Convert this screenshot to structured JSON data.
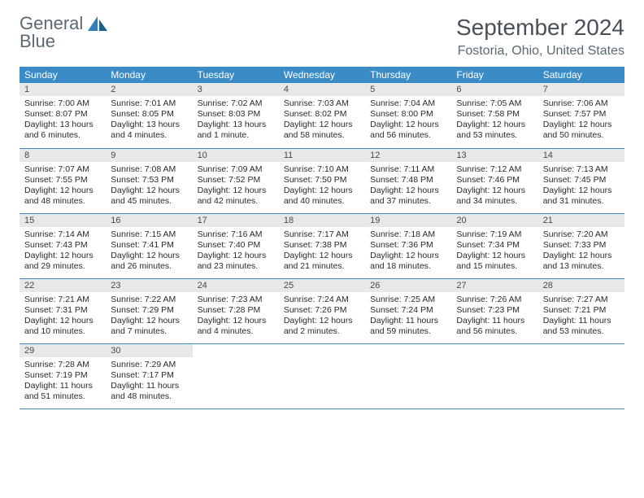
{
  "logo": {
    "line1": "General",
    "line2": "Blue"
  },
  "title": "September 2024",
  "location": "Fostoria, Ohio, United States",
  "colors": {
    "header_bg": "#3b8bc6",
    "header_text": "#ffffff",
    "daynum_bg": "#e7e8ea",
    "row_border": "#3b8bc6",
    "logo_gray": "#5a6a72",
    "logo_blue": "#2e7fbb"
  },
  "weekdays": [
    "Sunday",
    "Monday",
    "Tuesday",
    "Wednesday",
    "Thursday",
    "Friday",
    "Saturday"
  ],
  "weeks": [
    [
      {
        "n": "1",
        "sunrise": "Sunrise: 7:00 AM",
        "sunset": "Sunset: 8:07 PM",
        "daylight": "Daylight: 13 hours and 6 minutes."
      },
      {
        "n": "2",
        "sunrise": "Sunrise: 7:01 AM",
        "sunset": "Sunset: 8:05 PM",
        "daylight": "Daylight: 13 hours and 4 minutes."
      },
      {
        "n": "3",
        "sunrise": "Sunrise: 7:02 AM",
        "sunset": "Sunset: 8:03 PM",
        "daylight": "Daylight: 13 hours and 1 minute."
      },
      {
        "n": "4",
        "sunrise": "Sunrise: 7:03 AM",
        "sunset": "Sunset: 8:02 PM",
        "daylight": "Daylight: 12 hours and 58 minutes."
      },
      {
        "n": "5",
        "sunrise": "Sunrise: 7:04 AM",
        "sunset": "Sunset: 8:00 PM",
        "daylight": "Daylight: 12 hours and 56 minutes."
      },
      {
        "n": "6",
        "sunrise": "Sunrise: 7:05 AM",
        "sunset": "Sunset: 7:58 PM",
        "daylight": "Daylight: 12 hours and 53 minutes."
      },
      {
        "n": "7",
        "sunrise": "Sunrise: 7:06 AM",
        "sunset": "Sunset: 7:57 PM",
        "daylight": "Daylight: 12 hours and 50 minutes."
      }
    ],
    [
      {
        "n": "8",
        "sunrise": "Sunrise: 7:07 AM",
        "sunset": "Sunset: 7:55 PM",
        "daylight": "Daylight: 12 hours and 48 minutes."
      },
      {
        "n": "9",
        "sunrise": "Sunrise: 7:08 AM",
        "sunset": "Sunset: 7:53 PM",
        "daylight": "Daylight: 12 hours and 45 minutes."
      },
      {
        "n": "10",
        "sunrise": "Sunrise: 7:09 AM",
        "sunset": "Sunset: 7:52 PM",
        "daylight": "Daylight: 12 hours and 42 minutes."
      },
      {
        "n": "11",
        "sunrise": "Sunrise: 7:10 AM",
        "sunset": "Sunset: 7:50 PM",
        "daylight": "Daylight: 12 hours and 40 minutes."
      },
      {
        "n": "12",
        "sunrise": "Sunrise: 7:11 AM",
        "sunset": "Sunset: 7:48 PM",
        "daylight": "Daylight: 12 hours and 37 minutes."
      },
      {
        "n": "13",
        "sunrise": "Sunrise: 7:12 AM",
        "sunset": "Sunset: 7:46 PM",
        "daylight": "Daylight: 12 hours and 34 minutes."
      },
      {
        "n": "14",
        "sunrise": "Sunrise: 7:13 AM",
        "sunset": "Sunset: 7:45 PM",
        "daylight": "Daylight: 12 hours and 31 minutes."
      }
    ],
    [
      {
        "n": "15",
        "sunrise": "Sunrise: 7:14 AM",
        "sunset": "Sunset: 7:43 PM",
        "daylight": "Daylight: 12 hours and 29 minutes."
      },
      {
        "n": "16",
        "sunrise": "Sunrise: 7:15 AM",
        "sunset": "Sunset: 7:41 PM",
        "daylight": "Daylight: 12 hours and 26 minutes."
      },
      {
        "n": "17",
        "sunrise": "Sunrise: 7:16 AM",
        "sunset": "Sunset: 7:40 PM",
        "daylight": "Daylight: 12 hours and 23 minutes."
      },
      {
        "n": "18",
        "sunrise": "Sunrise: 7:17 AM",
        "sunset": "Sunset: 7:38 PM",
        "daylight": "Daylight: 12 hours and 21 minutes."
      },
      {
        "n": "19",
        "sunrise": "Sunrise: 7:18 AM",
        "sunset": "Sunset: 7:36 PM",
        "daylight": "Daylight: 12 hours and 18 minutes."
      },
      {
        "n": "20",
        "sunrise": "Sunrise: 7:19 AM",
        "sunset": "Sunset: 7:34 PM",
        "daylight": "Daylight: 12 hours and 15 minutes."
      },
      {
        "n": "21",
        "sunrise": "Sunrise: 7:20 AM",
        "sunset": "Sunset: 7:33 PM",
        "daylight": "Daylight: 12 hours and 13 minutes."
      }
    ],
    [
      {
        "n": "22",
        "sunrise": "Sunrise: 7:21 AM",
        "sunset": "Sunset: 7:31 PM",
        "daylight": "Daylight: 12 hours and 10 minutes."
      },
      {
        "n": "23",
        "sunrise": "Sunrise: 7:22 AM",
        "sunset": "Sunset: 7:29 PM",
        "daylight": "Daylight: 12 hours and 7 minutes."
      },
      {
        "n": "24",
        "sunrise": "Sunrise: 7:23 AM",
        "sunset": "Sunset: 7:28 PM",
        "daylight": "Daylight: 12 hours and 4 minutes."
      },
      {
        "n": "25",
        "sunrise": "Sunrise: 7:24 AM",
        "sunset": "Sunset: 7:26 PM",
        "daylight": "Daylight: 12 hours and 2 minutes."
      },
      {
        "n": "26",
        "sunrise": "Sunrise: 7:25 AM",
        "sunset": "Sunset: 7:24 PM",
        "daylight": "Daylight: 11 hours and 59 minutes."
      },
      {
        "n": "27",
        "sunrise": "Sunrise: 7:26 AM",
        "sunset": "Sunset: 7:23 PM",
        "daylight": "Daylight: 11 hours and 56 minutes."
      },
      {
        "n": "28",
        "sunrise": "Sunrise: 7:27 AM",
        "sunset": "Sunset: 7:21 PM",
        "daylight": "Daylight: 11 hours and 53 minutes."
      }
    ],
    [
      {
        "n": "29",
        "sunrise": "Sunrise: 7:28 AM",
        "sunset": "Sunset: 7:19 PM",
        "daylight": "Daylight: 11 hours and 51 minutes."
      },
      {
        "n": "30",
        "sunrise": "Sunrise: 7:29 AM",
        "sunset": "Sunset: 7:17 PM",
        "daylight": "Daylight: 11 hours and 48 minutes."
      },
      null,
      null,
      null,
      null,
      null
    ]
  ]
}
